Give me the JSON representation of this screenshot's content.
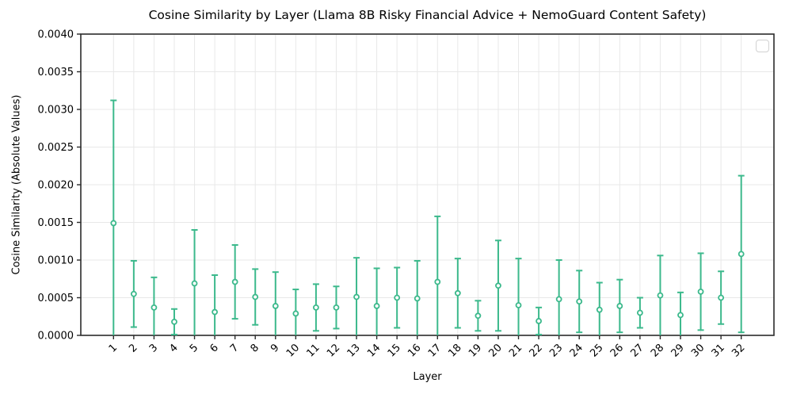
{
  "chart_data": {
    "type": "errorbar",
    "title": "Cosine Similarity by Layer (Llama 8B Risky Financial Advice + NemoGuard Content Safety)",
    "xlabel": "Layer",
    "ylabel": "Cosine Similarity (Absolute Values)",
    "x": [
      1,
      2,
      3,
      4,
      5,
      6,
      7,
      8,
      9,
      10,
      11,
      12,
      13,
      14,
      15,
      16,
      17,
      18,
      19,
      20,
      21,
      22,
      23,
      24,
      25,
      26,
      27,
      28,
      29,
      30,
      31,
      32
    ],
    "y": [
      0.00149,
      0.00055,
      0.00037,
      0.00018,
      0.00069,
      0.00031,
      0.00071,
      0.00051,
      0.00039,
      0.00029,
      0.00037,
      0.00037,
      0.00051,
      0.00039,
      0.0005,
      0.00049,
      0.00071,
      0.00056,
      0.00026,
      0.00066,
      0.0004,
      0.00019,
      0.00048,
      0.00045,
      0.00034,
      0.00039,
      0.0003,
      0.00053,
      0.00027,
      0.00058,
      0.0005,
      0.00108
    ],
    "yerr": [
      0.00163,
      0.00044,
      0.0004,
      0.00017,
      0.00071,
      0.00049,
      0.00049,
      0.00037,
      0.00045,
      0.00032,
      0.00031,
      0.00028,
      0.00052,
      0.0005,
      0.0004,
      0.0005,
      0.00087,
      0.00046,
      0.0002,
      0.0006,
      0.00062,
      0.00018,
      0.00052,
      0.00041,
      0.00036,
      0.00035,
      0.0002,
      0.00053,
      0.0003,
      0.00051,
      0.00035,
      0.00104
    ],
    "ylim": [
      0,
      0.004
    ],
    "ytick_labels": [
      "0.0000",
      "0.0005",
      "0.0010",
      "0.0015",
      "0.0020",
      "0.0025",
      "0.0030",
      "0.0035",
      "0.0040"
    ],
    "xtick_labels": [
      "1",
      "2",
      "3",
      "4",
      "5",
      "6",
      "7",
      "8",
      "9",
      "10",
      "11",
      "12",
      "13",
      "14",
      "15",
      "16",
      "17",
      "18",
      "19",
      "20",
      "21",
      "22",
      "23",
      "24",
      "25",
      "26",
      "27",
      "28",
      "29",
      "30",
      "31",
      "32"
    ],
    "grid": true,
    "legend": {
      "visible": true,
      "entries": [],
      "position": "upper right"
    },
    "colors": {
      "series": "#3cb98c",
      "marker_face": "#ffffff",
      "grid": "#e8e8e8",
      "spine": "#2b2b2b",
      "text": "#000000",
      "legend_border": "#d2d2d2"
    }
  }
}
